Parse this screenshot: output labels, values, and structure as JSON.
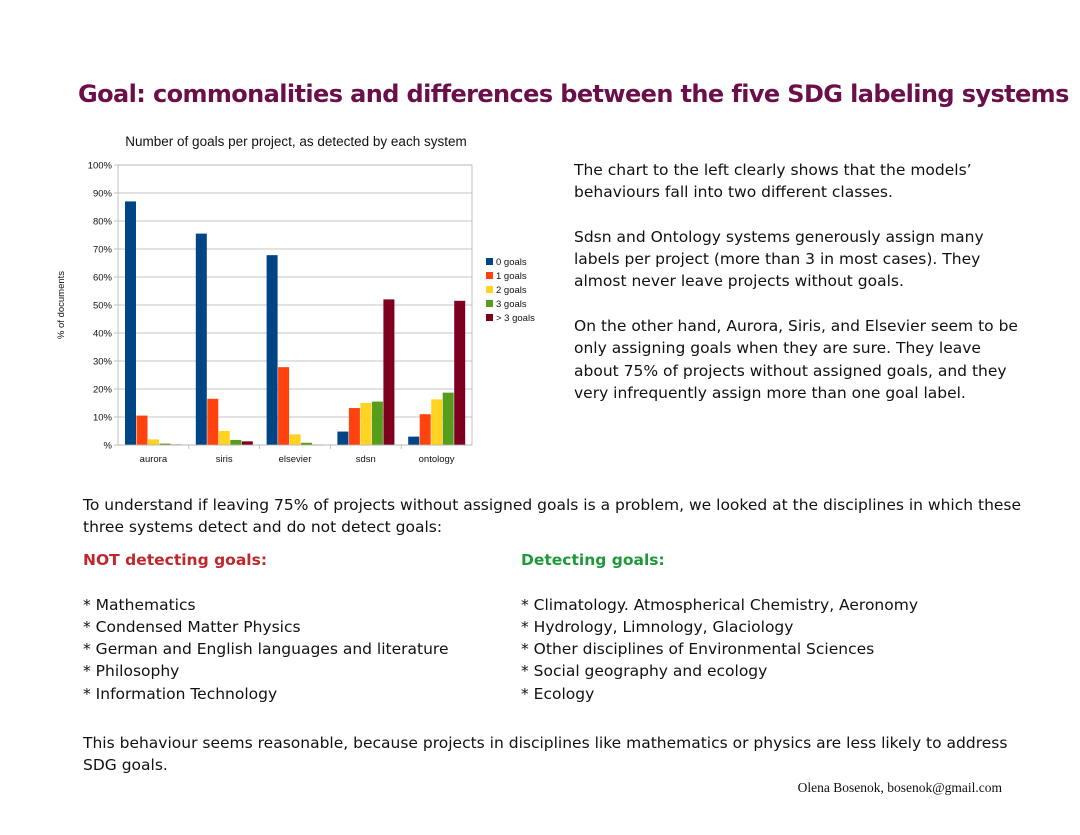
{
  "title": "Goal: commonalities and differences between the five SDG labeling systems",
  "chart_data": {
    "type": "bar",
    "title": "Number of goals per project, as detected by each system",
    "xlabel": "",
    "ylabel": "% of documents",
    "ylim": [
      0,
      100
    ],
    "y_ticks": [
      "%",
      "10%",
      "20%",
      "30%",
      "40%",
      "50%",
      "60%",
      "70%",
      "80%",
      "90%",
      "100%"
    ],
    "grid": true,
    "legend_position": "right",
    "categories": [
      "aurora",
      "siris",
      "elsevier",
      "sdsn",
      "ontology"
    ],
    "series": [
      {
        "name": "0 goals",
        "color": "#004586",
        "values": [
          87,
          75.5,
          67.8,
          4.8,
          3
        ]
      },
      {
        "name": "1 goals",
        "color": "#ff420e",
        "values": [
          10.5,
          16.5,
          27.8,
          13.2,
          11
        ]
      },
      {
        "name": "2 goals",
        "color": "#ffd320",
        "values": [
          2,
          5,
          3.8,
          15,
          16.3
        ]
      },
      {
        "name": "3 goals",
        "color": "#579d1c",
        "values": [
          0.5,
          1.8,
          0.8,
          15.5,
          18.7
        ]
      },
      {
        "name": "> 3 goals",
        "color": "#7e0021",
        "values": [
          0.2,
          1.3,
          0.1,
          52,
          51.5
        ]
      }
    ]
  },
  "side_paragraphs": [
    "The chart to the left clearly shows that the models’ behaviours fall into two different classes.",
    "Sdsn and Ontology systems generously assign many labels per project (more than 3 in most cases). They almost never leave projects without goals.",
    "On the other hand, Aurora, Siris, and Elsevier seem to be only assigning goals when they are sure. They leave about 75% of projects without assigned goals, and they very infrequently assign more than one goal label."
  ],
  "intro": "To understand if leaving 75% of projects without assigned goals is a problem, we looked at the disciplines in which these three systems detect and do not detect goals:",
  "not_detecting": {
    "heading": "NOT detecting goals:",
    "items": [
      "* Mathematics",
      "* Condensed Matter Physics",
      "* German and English languages and literature",
      "* Philosophy",
      "* Information Technology"
    ]
  },
  "detecting": {
    "heading": "Detecting goals:",
    "items": [
      "* Climatology. Atmospherical Chemistry, Aeronomy",
      "* Hydrology, Limnology, Glaciology",
      "* Other disciplines of Environmental Sciences",
      "* Social geography and ecology",
      "* Ecology"
    ]
  },
  "conclusion": "This behaviour seems reasonable, because projects in disciplines like mathematics or physics are less likely to address SDG goals.",
  "footer": "Olena Bosenok, bosenok@gmail.com"
}
